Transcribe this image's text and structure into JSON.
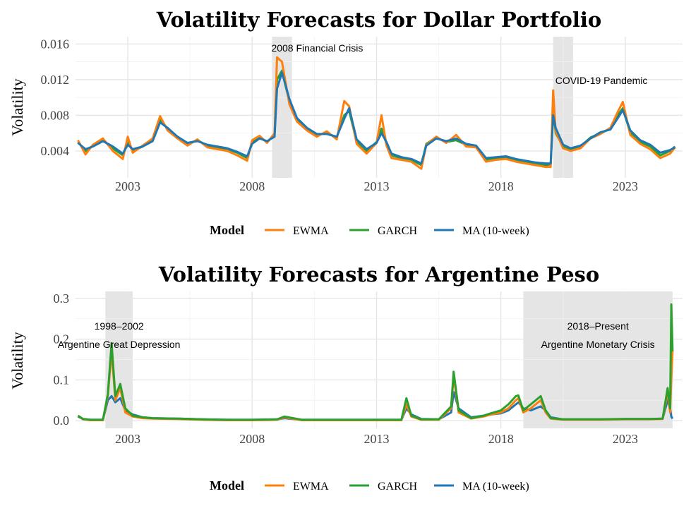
{
  "colors": {
    "EWMA": "#ff7f0e",
    "GARCH": "#2ca02c",
    "MA (10-week)": "#1f77b4",
    "shade": "#e5e5e5"
  },
  "chart_data": [
    {
      "type": "line",
      "title": "Volatility Forecasts for Dollar Portfolio",
      "xlabel": "",
      "ylabel": "Volatility",
      "xlim": [
        2000.9,
        2025.3
      ],
      "ylim": [
        0.0013,
        0.0165
      ],
      "x_ticks": [
        2003,
        2008,
        2013,
        2018,
        2023
      ],
      "x_tick_labels": [
        "2003",
        "2008",
        "2013",
        "2018",
        "2023"
      ],
      "y_ticks": [
        0.004,
        0.008,
        0.012,
        0.016
      ],
      "y_tick_labels": [
        "0.004",
        "0.008",
        "0.012",
        "0.016"
      ],
      "grid": true,
      "legend": {
        "title": "Model",
        "position": "bottom",
        "entries": [
          "EWMA",
          "GARCH",
          "MA (10-week)"
        ]
      },
      "shaded_regions": [
        {
          "start": 2008.8,
          "end": 2009.6,
          "label": "2008 Financial Crisis"
        },
        {
          "start": 2020.1,
          "end": 2020.9,
          "label": "COVID-19 Pandemic"
        }
      ],
      "series": [
        {
          "name": "GARCH",
          "x": [
            2001.0,
            2001.3,
            2001.6,
            2002.0,
            2002.4,
            2002.8,
            2003.0,
            2003.2,
            2003.6,
            2004.0,
            2004.3,
            2004.6,
            2005.0,
            2005.4,
            2005.8,
            2006.2,
            2006.6,
            2007.0,
            2007.4,
            2007.8,
            2008.0,
            2008.3,
            2008.6,
            2008.9,
            2009.0,
            2009.2,
            2009.5,
            2009.8,
            2010.2,
            2010.6,
            2011.0,
            2011.4,
            2011.7,
            2011.9,
            2012.2,
            2012.6,
            2013.0,
            2013.2,
            2013.4,
            2013.6,
            2014.0,
            2014.4,
            2014.8,
            2015.0,
            2015.4,
            2015.8,
            2016.2,
            2016.6,
            2017.0,
            2017.4,
            2017.8,
            2018.2,
            2018.6,
            2019.0,
            2019.4,
            2019.8,
            2020.0,
            2020.1,
            2020.2,
            2020.5,
            2020.8,
            2021.2,
            2021.6,
            2022.0,
            2022.4,
            2022.7,
            2022.9,
            2023.2,
            2023.6,
            2024.0,
            2024.4,
            2024.8,
            2025.0
          ],
          "values": [
            0.005,
            0.004,
            0.0046,
            0.0052,
            0.0043,
            0.0035,
            0.005,
            0.004,
            0.0045,
            0.0052,
            0.0075,
            0.0065,
            0.0055,
            0.0048,
            0.0052,
            0.0046,
            0.0044,
            0.0042,
            0.0038,
            0.0032,
            0.005,
            0.0055,
            0.005,
            0.0058,
            0.012,
            0.013,
            0.0095,
            0.0075,
            0.0065,
            0.0058,
            0.006,
            0.0055,
            0.008,
            0.0085,
            0.005,
            0.004,
            0.005,
            0.0065,
            0.0048,
            0.0035,
            0.0032,
            0.003,
            0.0024,
            0.0048,
            0.0055,
            0.005,
            0.0052,
            0.0047,
            0.0045,
            0.003,
            0.0032,
            0.0033,
            0.003,
            0.0028,
            0.0026,
            0.0024,
            0.0025,
            0.009,
            0.006,
            0.0045,
            0.0042,
            0.0045,
            0.0055,
            0.006,
            0.0065,
            0.008,
            0.0088,
            0.006,
            0.005,
            0.0045,
            0.0035,
            0.004,
            0.0045
          ]
        },
        {
          "name": "EWMA",
          "x": [
            2001.0,
            2001.3,
            2001.6,
            2002.0,
            2002.4,
            2002.8,
            2003.0,
            2003.2,
            2003.6,
            2004.0,
            2004.3,
            2004.6,
            2005.0,
            2005.4,
            2005.8,
            2006.2,
            2006.6,
            2007.0,
            2007.4,
            2007.8,
            2008.0,
            2008.3,
            2008.6,
            2008.9,
            2009.0,
            2009.2,
            2009.5,
            2009.8,
            2010.2,
            2010.6,
            2011.0,
            2011.4,
            2011.7,
            2011.9,
            2012.2,
            2012.6,
            2013.0,
            2013.2,
            2013.4,
            2013.6,
            2014.0,
            2014.4,
            2014.8,
            2015.0,
            2015.4,
            2015.8,
            2016.2,
            2016.6,
            2017.0,
            2017.4,
            2017.8,
            2018.2,
            2018.6,
            2019.0,
            2019.4,
            2019.8,
            2020.0,
            2020.1,
            2020.2,
            2020.5,
            2020.8,
            2021.2,
            2021.6,
            2022.0,
            2022.4,
            2022.7,
            2022.9,
            2023.2,
            2023.6,
            2024.0,
            2024.4,
            2024.8,
            2025.0
          ],
          "values": [
            0.0052,
            0.0036,
            0.0047,
            0.0054,
            0.004,
            0.0031,
            0.0056,
            0.0038,
            0.0046,
            0.0054,
            0.0079,
            0.0063,
            0.0054,
            0.0046,
            0.0053,
            0.0044,
            0.0042,
            0.004,
            0.0035,
            0.0029,
            0.0052,
            0.0057,
            0.0049,
            0.006,
            0.0145,
            0.014,
            0.0092,
            0.0073,
            0.0063,
            0.0056,
            0.0062,
            0.0053,
            0.0096,
            0.009,
            0.0048,
            0.0037,
            0.0049,
            0.008,
            0.0046,
            0.0032,
            0.003,
            0.0028,
            0.002,
            0.0047,
            0.0056,
            0.0049,
            0.0058,
            0.0045,
            0.0044,
            0.0028,
            0.003,
            0.0031,
            0.0028,
            0.0026,
            0.0024,
            0.0022,
            0.0022,
            0.0108,
            0.0062,
            0.0043,
            0.004,
            0.0043,
            0.0054,
            0.0059,
            0.0066,
            0.0084,
            0.0095,
            0.0058,
            0.0048,
            0.0042,
            0.0032,
            0.0037,
            0.0044
          ]
        },
        {
          "name": "MA (10-week)",
          "x": [
            2001.0,
            2001.3,
            2001.6,
            2002.0,
            2002.4,
            2002.8,
            2003.0,
            2003.2,
            2003.6,
            2004.0,
            2004.3,
            2004.6,
            2005.0,
            2005.4,
            2005.8,
            2006.2,
            2006.6,
            2007.0,
            2007.4,
            2007.8,
            2008.0,
            2008.3,
            2008.6,
            2008.9,
            2009.0,
            2009.2,
            2009.5,
            2009.8,
            2010.2,
            2010.6,
            2011.0,
            2011.4,
            2011.7,
            2011.9,
            2012.2,
            2012.6,
            2013.0,
            2013.2,
            2013.4,
            2013.6,
            2014.0,
            2014.4,
            2014.8,
            2015.0,
            2015.4,
            2015.8,
            2016.2,
            2016.6,
            2017.0,
            2017.4,
            2017.8,
            2018.2,
            2018.6,
            2019.0,
            2019.4,
            2019.8,
            2020.0,
            2020.1,
            2020.2,
            2020.5,
            2020.8,
            2021.2,
            2021.6,
            2022.0,
            2022.4,
            2022.7,
            2022.9,
            2023.2,
            2023.6,
            2024.0,
            2024.4,
            2024.8,
            2025.0
          ],
          "values": [
            0.0049,
            0.0042,
            0.0045,
            0.0051,
            0.0045,
            0.0037,
            0.0047,
            0.0042,
            0.0045,
            0.0051,
            0.0072,
            0.0066,
            0.0056,
            0.0049,
            0.0051,
            0.0047,
            0.0045,
            0.0043,
            0.0039,
            0.0034,
            0.0048,
            0.0054,
            0.0051,
            0.0056,
            0.011,
            0.0128,
            0.0098,
            0.0077,
            0.0066,
            0.0059,
            0.0059,
            0.0056,
            0.0076,
            0.0088,
            0.0053,
            0.0042,
            0.0049,
            0.006,
            0.005,
            0.0037,
            0.0033,
            0.0031,
            0.0026,
            0.0046,
            0.0054,
            0.0051,
            0.0054,
            0.0048,
            0.0046,
            0.0032,
            0.0033,
            0.0034,
            0.0031,
            0.0029,
            0.0027,
            0.0026,
            0.0026,
            0.008,
            0.0066,
            0.0047,
            0.0043,
            0.0046,
            0.0054,
            0.0061,
            0.0064,
            0.0077,
            0.0086,
            0.0063,
            0.0052,
            0.0047,
            0.0038,
            0.0041,
            0.0044
          ]
        }
      ]
    },
    {
      "type": "line",
      "title": "Volatility Forecasts for Argentine Peso",
      "xlabel": "",
      "ylabel": "Volatility",
      "xlim": [
        2000.9,
        2025.3
      ],
      "ylim": [
        -0.012,
        0.31
      ],
      "x_ticks": [
        2003,
        2008,
        2013,
        2018,
        2023
      ],
      "x_tick_labels": [
        "2003",
        "2008",
        "2013",
        "2018",
        "2023"
      ],
      "y_ticks": [
        0.0,
        0.1,
        0.2,
        0.3
      ],
      "y_tick_labels": [
        "0.0",
        "0.1",
        "0.2",
        "0.3"
      ],
      "grid": true,
      "legend": {
        "title": "Model",
        "position": "bottom",
        "entries": [
          "EWMA",
          "GARCH",
          "MA (10-week)"
        ]
      },
      "shaded_regions": [
        {
          "start": 2002.1,
          "end": 2003.2,
          "label_lines": [
            "1998–2002",
            "Argentine Great Depression"
          ]
        },
        {
          "start": 2018.9,
          "end": 2024.9,
          "label_lines": [
            "2018–Present",
            "Argentine Monetary Crisis"
          ]
        }
      ],
      "series": [
        {
          "name": "MA (10-week)",
          "x": [
            2001.0,
            2001.2,
            2001.5,
            2002.0,
            2002.2,
            2002.35,
            2002.5,
            2002.7,
            2002.9,
            2003.2,
            2003.6,
            2004.0,
            2005.0,
            2006.0,
            2007.0,
            2008.0,
            2009.0,
            2009.3,
            2010.0,
            2011.0,
            2012.0,
            2013.0,
            2014.0,
            2014.2,
            2014.4,
            2014.8,
            2015.5,
            2016.0,
            2016.1,
            2016.3,
            2016.8,
            2017.3,
            2017.6,
            2018.0,
            2018.3,
            2018.6,
            2018.7,
            2018.9,
            2019.2,
            2019.6,
            2019.8,
            2020.0,
            2020.5,
            2021.0,
            2022.0,
            2023.0,
            2023.6,
            2024.0,
            2024.5,
            2024.7,
            2024.8,
            2024.85,
            2024.9
          ],
          "values": [
            0.01,
            0.004,
            0.002,
            0.002,
            0.05,
            0.06,
            0.045,
            0.055,
            0.025,
            0.015,
            0.008,
            0.006,
            0.005,
            0.003,
            0.002,
            0.002,
            0.003,
            0.006,
            0.002,
            0.002,
            0.002,
            0.002,
            0.002,
            0.03,
            0.015,
            0.004,
            0.003,
            0.02,
            0.07,
            0.03,
            0.008,
            0.012,
            0.015,
            0.018,
            0.025,
            0.04,
            0.045,
            0.03,
            0.025,
            0.035,
            0.025,
            0.008,
            0.003,
            0.003,
            0.003,
            0.004,
            0.004,
            0.004,
            0.005,
            0.05,
            0.03,
            0.01,
            0.005
          ]
        },
        {
          "name": "EWMA",
          "x": [
            2001.0,
            2001.2,
            2001.5,
            2002.0,
            2002.2,
            2002.35,
            2002.5,
            2002.7,
            2002.9,
            2003.2,
            2003.6,
            2004.0,
            2005.0,
            2006.0,
            2007.0,
            2008.0,
            2009.0,
            2009.3,
            2010.0,
            2011.0,
            2012.0,
            2013.0,
            2014.0,
            2014.2,
            2014.4,
            2014.8,
            2015.5,
            2016.0,
            2016.1,
            2016.3,
            2016.8,
            2017.3,
            2017.6,
            2018.0,
            2018.3,
            2018.6,
            2018.7,
            2018.9,
            2019.2,
            2019.6,
            2019.8,
            2020.0,
            2020.5,
            2021.0,
            2022.0,
            2023.0,
            2023.6,
            2024.0,
            2024.5,
            2024.7,
            2024.8,
            2024.85,
            2024.9
          ],
          "values": [
            0.012,
            0.003,
            0.001,
            0.001,
            0.06,
            0.17,
            0.05,
            0.08,
            0.02,
            0.01,
            0.006,
            0.005,
            0.004,
            0.002,
            0.001,
            0.001,
            0.002,
            0.008,
            0.001,
            0.001,
            0.001,
            0.001,
            0.001,
            0.04,
            0.01,
            0.002,
            0.002,
            0.03,
            0.11,
            0.02,
            0.005,
            0.01,
            0.015,
            0.02,
            0.03,
            0.05,
            0.055,
            0.02,
            0.03,
            0.05,
            0.02,
            0.005,
            0.002,
            0.002,
            0.002,
            0.003,
            0.003,
            0.003,
            0.004,
            0.07,
            0.02,
            0.1,
            0.17
          ]
        },
        {
          "name": "GARCH",
          "x": [
            2001.0,
            2001.2,
            2001.5,
            2002.0,
            2002.2,
            2002.35,
            2002.5,
            2002.7,
            2002.9,
            2003.2,
            2003.6,
            2004.0,
            2005.0,
            2006.0,
            2007.0,
            2008.0,
            2009.0,
            2009.3,
            2010.0,
            2011.0,
            2012.0,
            2013.0,
            2014.0,
            2014.2,
            2014.4,
            2014.8,
            2015.5,
            2016.0,
            2016.1,
            2016.3,
            2016.8,
            2017.3,
            2017.6,
            2018.0,
            2018.3,
            2018.6,
            2018.7,
            2018.9,
            2019.2,
            2019.6,
            2019.8,
            2020.0,
            2020.5,
            2021.0,
            2022.0,
            2023.0,
            2023.6,
            2024.0,
            2024.5,
            2024.7,
            2024.8,
            2024.85,
            2024.9
          ],
          "values": [
            0.012,
            0.004,
            0.002,
            0.002,
            0.065,
            0.19,
            0.06,
            0.09,
            0.03,
            0.012,
            0.008,
            0.006,
            0.005,
            0.003,
            0.002,
            0.002,
            0.003,
            0.01,
            0.002,
            0.002,
            0.002,
            0.002,
            0.002,
            0.055,
            0.012,
            0.003,
            0.003,
            0.035,
            0.12,
            0.025,
            0.006,
            0.012,
            0.018,
            0.025,
            0.04,
            0.06,
            0.062,
            0.025,
            0.04,
            0.06,
            0.025,
            0.006,
            0.003,
            0.003,
            0.003,
            0.004,
            0.004,
            0.004,
            0.005,
            0.08,
            0.03,
            0.285,
            0.17
          ]
        }
      ]
    }
  ]
}
